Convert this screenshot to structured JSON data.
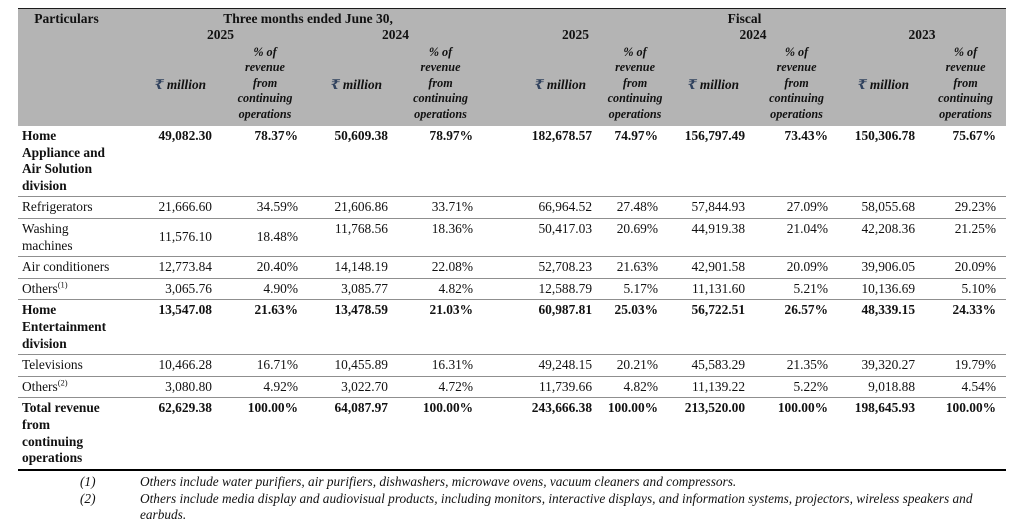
{
  "colors": {
    "header_bg": "#b4b4b4",
    "rupee_symbol": "#31425e"
  },
  "table": {
    "header": {
      "particulars_label": "Particulars",
      "quarter_group_label": "Three months ended June 30,",
      "fiscal_group_label": "Fiscal",
      "periods": [
        "2025",
        "2024",
        "2025",
        "2024",
        "2023"
      ],
      "currency_symbol": "₹",
      "currency_unit": "million",
      "pct_label": "% of revenue from continuing operations"
    },
    "rows": [
      {
        "label": "Home Appliance and Air Solution division",
        "bold": true,
        "values": [
          "49,082.30",
          "78.37%",
          "50,609.38",
          "78.97%",
          "182,678.57",
          "74.97%",
          "156,797.49",
          "73.43%",
          "150,306.78",
          "75.67%"
        ]
      },
      {
        "label": "Refrigerators",
        "bold": false,
        "values": [
          "21,666.60",
          "34.59%",
          "21,606.86",
          "33.71%",
          "66,964.52",
          "27.48%",
          "57,844.93",
          "27.09%",
          "58,055.68",
          "29.23%"
        ]
      },
      {
        "label": "Washing machines",
        "bold": false,
        "values": [
          "11,576.10",
          "18.48%",
          "11,768.56",
          "18.36%",
          "50,417.03",
          "20.69%",
          "44,919.38",
          "21.04%",
          "42,208.36",
          "21.25%"
        ]
      },
      {
        "label": "Air conditioners",
        "bold": false,
        "values": [
          "12,773.84",
          "20.40%",
          "14,148.19",
          "22.08%",
          "52,708.23",
          "21.63%",
          "42,901.58",
          "20.09%",
          "39,906.05",
          "20.09%"
        ]
      },
      {
        "label": "Others",
        "sup": "(1)",
        "bold": false,
        "values": [
          "3,065.76",
          "4.90%",
          "3,085.77",
          "4.82%",
          "12,588.79",
          "5.17%",
          "11,131.60",
          "5.21%",
          "10,136.69",
          "5.10%"
        ]
      },
      {
        "label": "Home Entertainment division",
        "bold": true,
        "values": [
          "13,547.08",
          "21.63%",
          "13,478.59",
          "21.03%",
          "60,987.81",
          "25.03%",
          "56,722.51",
          "26.57%",
          "48,339.15",
          "24.33%"
        ]
      },
      {
        "label": "Televisions",
        "bold": false,
        "values": [
          "10,466.28",
          "16.71%",
          "10,455.89",
          "16.31%",
          "49,248.15",
          "20.21%",
          "45,583.29",
          "21.35%",
          "39,320.27",
          "19.79%"
        ]
      },
      {
        "label": "Others",
        "sup": "(2)",
        "bold": false,
        "values": [
          "3,080.80",
          "4.92%",
          "3,022.70",
          "4.72%",
          "11,739.66",
          "4.82%",
          "11,139.22",
          "5.22%",
          "9,018.88",
          "4.54%"
        ]
      },
      {
        "label": "Total revenue from continuing operations",
        "bold": true,
        "values": [
          "62,629.38",
          "100.00%",
          "64,087.97",
          "100.00%",
          "243,666.38",
          "100.00%",
          "213,520.00",
          "100.00%",
          "198,645.93",
          "100.00%"
        ]
      }
    ],
    "footnotes": [
      {
        "marker": "(1)",
        "text": "Others include water purifiers, air purifiers, dishwashers, microwave ovens, vacuum cleaners and compressors."
      },
      {
        "marker": "(2)",
        "text": "Others include media display and audiovisual products, including monitors, interactive displays, and information systems, projectors, wireless speakers and earbuds."
      }
    ]
  }
}
